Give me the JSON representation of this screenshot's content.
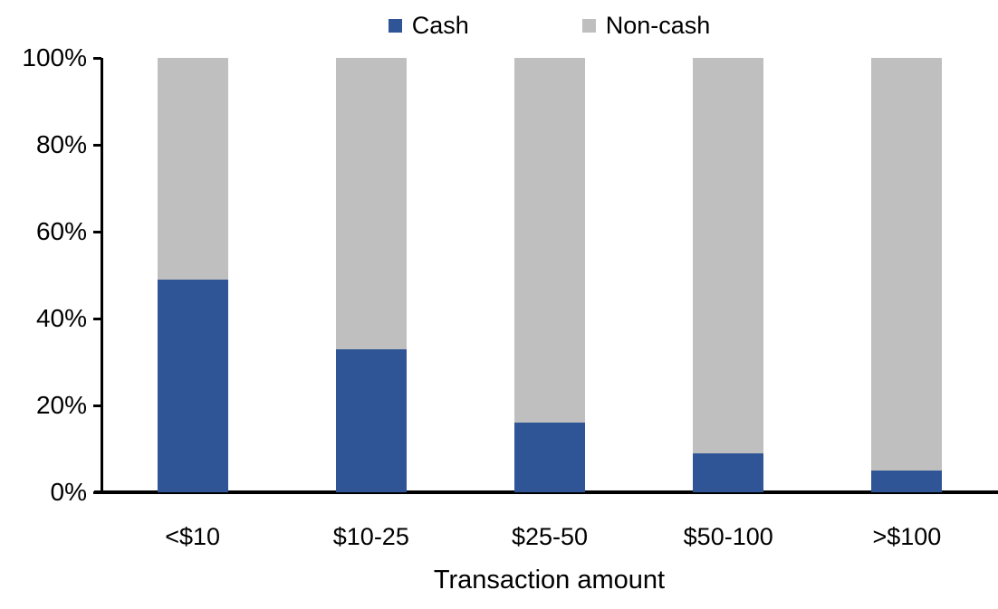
{
  "chart_data": {
    "type": "bar",
    "stacked": true,
    "orientation": "vertical",
    "title": "",
    "xlabel": "Transaction amount",
    "ylabel": "",
    "categories": [
      "<$10",
      "$10-25",
      "$25-50",
      "$50-100",
      ">$100"
    ],
    "series": [
      {
        "name": "Cash",
        "color": "#2F5597",
        "values": [
          49,
          33,
          16,
          9,
          5
        ]
      },
      {
        "name": "Non-cash",
        "color": "#BFBFBF",
        "values": [
          51,
          67,
          84,
          91,
          95
        ]
      }
    ],
    "ylim": [
      0,
      100
    ],
    "ytick_labels": [
      "0%",
      "20%",
      "40%",
      "60%",
      "80%",
      "100%"
    ],
    "ytick_values": [
      0,
      20,
      40,
      60,
      80,
      100
    ],
    "grid": "off",
    "legend_position": "top-center",
    "axis_color": "#000000",
    "background_color": "#FFFFFF"
  }
}
